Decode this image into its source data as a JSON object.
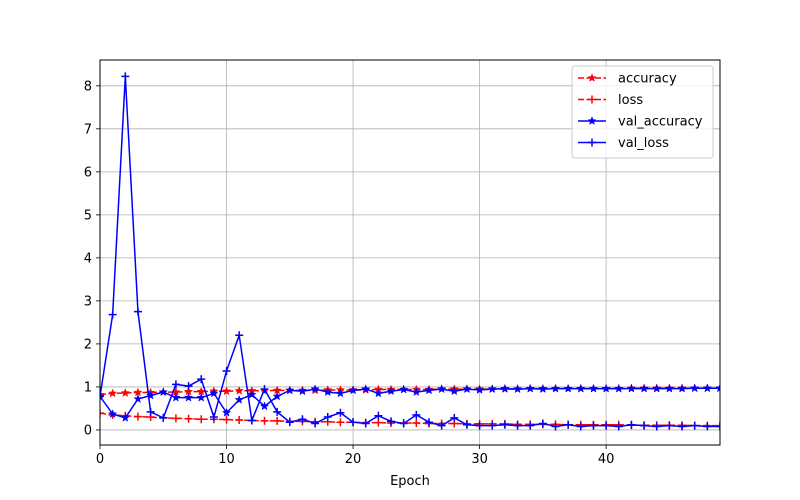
{
  "chart_data": {
    "type": "line",
    "title": "",
    "xlabel": "Epoch",
    "ylabel": "",
    "xlim": [
      0,
      49
    ],
    "ylim": [
      -0.35,
      8.6
    ],
    "x_ticks": [
      0,
      10,
      20,
      30,
      40
    ],
    "y_ticks": [
      0,
      1,
      2,
      3,
      4,
      5,
      6,
      7,
      8
    ],
    "grid": true,
    "legend_position": "top-right",
    "x": [
      0,
      1,
      2,
      3,
      4,
      5,
      6,
      7,
      8,
      9,
      10,
      11,
      12,
      13,
      14,
      15,
      16,
      17,
      18,
      19,
      20,
      21,
      22,
      23,
      24,
      25,
      26,
      27,
      28,
      29,
      30,
      31,
      32,
      33,
      34,
      35,
      36,
      37,
      38,
      39,
      40,
      41,
      42,
      43,
      44,
      45,
      46,
      47,
      48,
      49
    ],
    "series": [
      {
        "name": "accuracy",
        "color": "#ff0000",
        "dashed": true,
        "marker": "star",
        "values": [
          0.82,
          0.85,
          0.86,
          0.87,
          0.87,
          0.88,
          0.88,
          0.89,
          0.89,
          0.9,
          0.9,
          0.91,
          0.91,
          0.91,
          0.92,
          0.92,
          0.92,
          0.92,
          0.93,
          0.93,
          0.93,
          0.93,
          0.94,
          0.94,
          0.94,
          0.94,
          0.94,
          0.95,
          0.95,
          0.95,
          0.95,
          0.95,
          0.95,
          0.95,
          0.96,
          0.96,
          0.96,
          0.96,
          0.96,
          0.96,
          0.96,
          0.96,
          0.97,
          0.97,
          0.97,
          0.97,
          0.97,
          0.97,
          0.97,
          0.97
        ]
      },
      {
        "name": "loss",
        "color": "#ff0000",
        "dashed": true,
        "marker": "plus",
        "values": [
          0.39,
          0.35,
          0.33,
          0.31,
          0.3,
          0.28,
          0.27,
          0.26,
          0.25,
          0.25,
          0.24,
          0.23,
          0.22,
          0.21,
          0.21,
          0.2,
          0.2,
          0.19,
          0.19,
          0.18,
          0.18,
          0.17,
          0.17,
          0.16,
          0.16,
          0.16,
          0.15,
          0.15,
          0.15,
          0.14,
          0.14,
          0.14,
          0.14,
          0.13,
          0.13,
          0.13,
          0.13,
          0.12,
          0.12,
          0.12,
          0.12,
          0.12,
          0.11,
          0.11,
          0.11,
          0.11,
          0.11,
          0.1,
          0.1,
          0.1
        ]
      },
      {
        "name": "val_accuracy",
        "color": "#0000ff",
        "dashed": false,
        "marker": "star",
        "values": [
          0.78,
          0.37,
          0.28,
          0.72,
          0.8,
          0.88,
          0.75,
          0.75,
          0.75,
          0.85,
          0.4,
          0.7,
          0.82,
          0.55,
          0.78,
          0.92,
          0.9,
          0.95,
          0.88,
          0.85,
          0.92,
          0.95,
          0.85,
          0.9,
          0.94,
          0.88,
          0.92,
          0.95,
          0.9,
          0.95,
          0.93,
          0.95,
          0.96,
          0.95,
          0.96,
          0.95,
          0.96,
          0.96,
          0.96,
          0.96,
          0.96,
          0.96,
          0.96,
          0.96,
          0.96,
          0.96,
          0.96,
          0.97,
          0.97,
          0.97
        ]
      },
      {
        "name": "val_loss",
        "color": "#0000ff",
        "dashed": false,
        "marker": "plus",
        "values": [
          0.78,
          2.68,
          8.22,
          2.75,
          0.42,
          0.28,
          1.06,
          1.02,
          1.18,
          0.3,
          1.37,
          2.2,
          0.22,
          0.95,
          0.42,
          0.18,
          0.25,
          0.15,
          0.3,
          0.4,
          0.18,
          0.15,
          0.33,
          0.2,
          0.15,
          0.35,
          0.18,
          0.1,
          0.28,
          0.12,
          0.1,
          0.1,
          0.12,
          0.1,
          0.1,
          0.15,
          0.08,
          0.12,
          0.08,
          0.1,
          0.1,
          0.08,
          0.12,
          0.1,
          0.08,
          0.1,
          0.08,
          0.1,
          0.08,
          0.08
        ]
      }
    ]
  }
}
